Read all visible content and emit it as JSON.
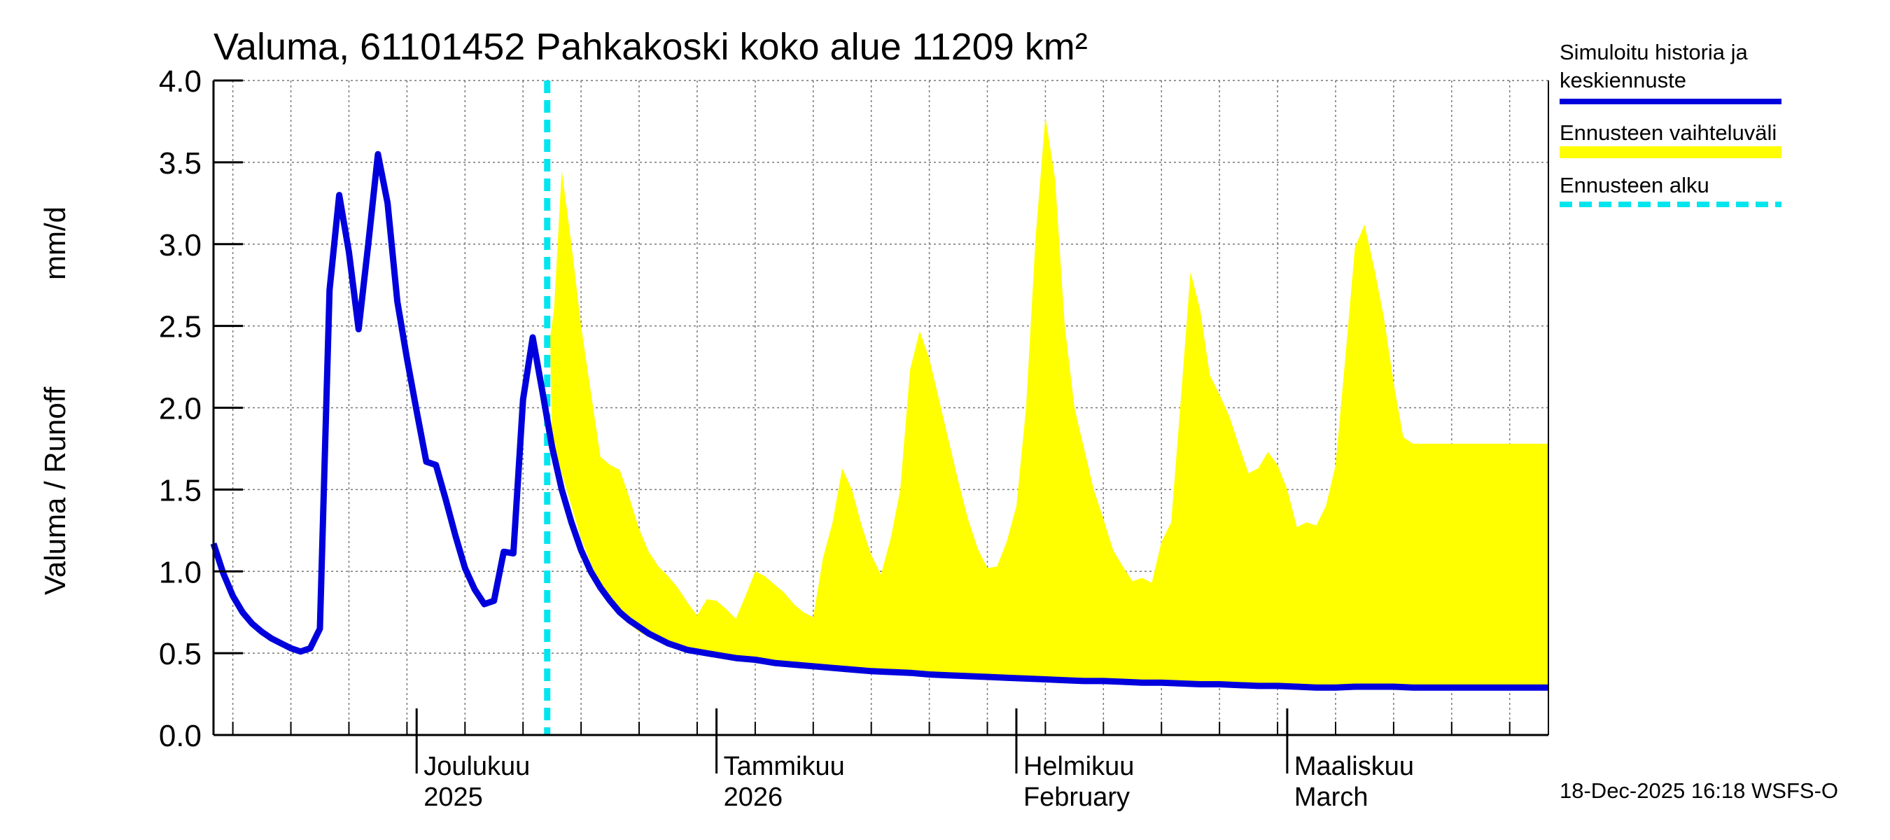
{
  "chart_data": {
    "type": "area",
    "title": "Valuma, 61101452 Pahkakoski koko alue 11209 km²",
    "ylabel_fi": "Valuma / Runoff",
    "ylabel_unit": "mm/d",
    "ylim": [
      0.0,
      4.0
    ],
    "yticks": [
      "0.0",
      "0.5",
      "1.0",
      "1.5",
      "2.0",
      "2.5",
      "3.0",
      "3.5",
      "4.0"
    ],
    "x_unit": "day index from 2025-11-10",
    "xlim": [
      0,
      138
    ],
    "forecast_start_day": 34.5,
    "month_ticks": [
      21,
      52,
      83,
      111
    ],
    "week_ticks": [
      2,
      8,
      14,
      20,
      26,
      32,
      38,
      44,
      50,
      56,
      62,
      68,
      74,
      80,
      86,
      92,
      98,
      104,
      110,
      116,
      122,
      128,
      134
    ],
    "month_labels": [
      {
        "day": 21,
        "line1": "Joulukuu",
        "line2": "2025"
      },
      {
        "day": 52,
        "line1": "Tammikuu",
        "line2": "2026"
      },
      {
        "day": 83,
        "line1": "Helmikuu",
        "line2": "February"
      },
      {
        "day": 111,
        "line1": "Maaliskuu",
        "line2": "March"
      }
    ],
    "series": [
      {
        "name": "Simuloitu historia ja keskiennuste",
        "color": "#0000dd",
        "points": [
          [
            0,
            1.17
          ],
          [
            1,
            0.99
          ],
          [
            2,
            0.85
          ],
          [
            3,
            0.75
          ],
          [
            4,
            0.68
          ],
          [
            5,
            0.63
          ],
          [
            6,
            0.59
          ],
          [
            7,
            0.56
          ],
          [
            8,
            0.53
          ],
          [
            9,
            0.51
          ],
          [
            10,
            0.53
          ],
          [
            11,
            0.65
          ],
          [
            12,
            2.72
          ],
          [
            13,
            3.3
          ],
          [
            14,
            2.95
          ],
          [
            15,
            2.48
          ],
          [
            16,
            3.0
          ],
          [
            17,
            3.55
          ],
          [
            18,
            3.25
          ],
          [
            19,
            2.65
          ],
          [
            20,
            2.3
          ],
          [
            21,
            1.98
          ],
          [
            22,
            1.67
          ],
          [
            23,
            1.65
          ],
          [
            24,
            1.44
          ],
          [
            25,
            1.22
          ],
          [
            26,
            1.02
          ],
          [
            27,
            0.89
          ],
          [
            28,
            0.8
          ],
          [
            29,
            0.82
          ],
          [
            30,
            1.12
          ],
          [
            31,
            1.11
          ],
          [
            32,
            2.05
          ],
          [
            33,
            2.43
          ],
          [
            34,
            2.1
          ],
          [
            35,
            1.76
          ],
          [
            36,
            1.5
          ],
          [
            37,
            1.3
          ],
          [
            38,
            1.13
          ],
          [
            39,
            1.0
          ],
          [
            40,
            0.9
          ],
          [
            41,
            0.82
          ],
          [
            42,
            0.75
          ],
          [
            43,
            0.7
          ],
          [
            44,
            0.66
          ],
          [
            45,
            0.62
          ],
          [
            46,
            0.59
          ],
          [
            47,
            0.56
          ],
          [
            48,
            0.54
          ],
          [
            49,
            0.52
          ],
          [
            50,
            0.51
          ],
          [
            52,
            0.49
          ],
          [
            54,
            0.47
          ],
          [
            56,
            0.46
          ],
          [
            58,
            0.44
          ],
          [
            60,
            0.43
          ],
          [
            62,
            0.42
          ],
          [
            64,
            0.41
          ],
          [
            66,
            0.4
          ],
          [
            68,
            0.39
          ],
          [
            70,
            0.385
          ],
          [
            72,
            0.38
          ],
          [
            74,
            0.37
          ],
          [
            76,
            0.365
          ],
          [
            78,
            0.36
          ],
          [
            80,
            0.355
          ],
          [
            82,
            0.35
          ],
          [
            84,
            0.345
          ],
          [
            86,
            0.34
          ],
          [
            88,
            0.335
          ],
          [
            90,
            0.33
          ],
          [
            92,
            0.33
          ],
          [
            94,
            0.325
          ],
          [
            96,
            0.32
          ],
          [
            98,
            0.32
          ],
          [
            100,
            0.315
          ],
          [
            102,
            0.31
          ],
          [
            104,
            0.31
          ],
          [
            106,
            0.305
          ],
          [
            108,
            0.3
          ],
          [
            110,
            0.3
          ],
          [
            112,
            0.295
          ],
          [
            114,
            0.29
          ],
          [
            116,
            0.29
          ],
          [
            118,
            0.295
          ],
          [
            120,
            0.295
          ],
          [
            122,
            0.295
          ],
          [
            124,
            0.29
          ],
          [
            126,
            0.29
          ],
          [
            128,
            0.29
          ],
          [
            130,
            0.29
          ],
          [
            132,
            0.29
          ],
          [
            134,
            0.29
          ],
          [
            136,
            0.29
          ],
          [
            138,
            0.29
          ]
        ]
      }
    ],
    "band": {
      "name": "Ennusteen vaihteluväli",
      "color": "#ffff00",
      "upper": [
        [
          34.8,
          2.43
        ],
        [
          35.2,
          2.6
        ],
        [
          36,
          3.45
        ],
        [
          37,
          3.0
        ],
        [
          38,
          2.5
        ],
        [
          39,
          2.1
        ],
        [
          40,
          1.7
        ],
        [
          41,
          1.65
        ],
        [
          42,
          1.62
        ],
        [
          43,
          1.45
        ],
        [
          44,
          1.26
        ],
        [
          45,
          1.12
        ],
        [
          46,
          1.03
        ],
        [
          47,
          0.97
        ],
        [
          48,
          0.9
        ],
        [
          49,
          0.81
        ],
        [
          50,
          0.73
        ],
        [
          51,
          0.83
        ],
        [
          52,
          0.82
        ],
        [
          53,
          0.77
        ],
        [
          54,
          0.71
        ],
        [
          55,
          0.85
        ],
        [
          56,
          1.0
        ],
        [
          57,
          0.97
        ],
        [
          58,
          0.92
        ],
        [
          59,
          0.87
        ],
        [
          60,
          0.8
        ],
        [
          61,
          0.75
        ],
        [
          62,
          0.72
        ],
        [
          63,
          1.08
        ],
        [
          64,
          1.3
        ],
        [
          65,
          1.63
        ],
        [
          66,
          1.5
        ],
        [
          67,
          1.28
        ],
        [
          68,
          1.1
        ],
        [
          69,
          0.98
        ],
        [
          70,
          1.2
        ],
        [
          71,
          1.5
        ],
        [
          72,
          2.23
        ],
        [
          73,
          2.47
        ],
        [
          74,
          2.3
        ],
        [
          75,
          2.05
        ],
        [
          76,
          1.8
        ],
        [
          77,
          1.55
        ],
        [
          78,
          1.32
        ],
        [
          79,
          1.14
        ],
        [
          80,
          1.02
        ],
        [
          81,
          1.03
        ],
        [
          82,
          1.18
        ],
        [
          83,
          1.4
        ],
        [
          84,
          2.0
        ],
        [
          85,
          3.05
        ],
        [
          86,
          3.78
        ],
        [
          87,
          3.4
        ],
        [
          88,
          2.5
        ],
        [
          89,
          2.0
        ],
        [
          90,
          1.75
        ],
        [
          91,
          1.5
        ],
        [
          92,
          1.32
        ],
        [
          93,
          1.13
        ],
        [
          94,
          1.03
        ],
        [
          95,
          0.94
        ],
        [
          96,
          0.96
        ],
        [
          97,
          0.93
        ],
        [
          98,
          1.18
        ],
        [
          99,
          1.3
        ],
        [
          100,
          2.05
        ],
        [
          101,
          2.83
        ],
        [
          102,
          2.6
        ],
        [
          103,
          2.2
        ],
        [
          104,
          2.08
        ],
        [
          105,
          1.95
        ],
        [
          106,
          1.77
        ],
        [
          107,
          1.6
        ],
        [
          108,
          1.63
        ],
        [
          109,
          1.73
        ],
        [
          110,
          1.65
        ],
        [
          111,
          1.5
        ],
        [
          112,
          1.27
        ],
        [
          113,
          1.3
        ],
        [
          114,
          1.28
        ],
        [
          115,
          1.4
        ],
        [
          116,
          1.65
        ],
        [
          117,
          2.3
        ],
        [
          118,
          2.98
        ],
        [
          119,
          3.12
        ],
        [
          120,
          2.85
        ],
        [
          121,
          2.55
        ],
        [
          122,
          2.15
        ],
        [
          123,
          1.82
        ],
        [
          124,
          1.78
        ],
        [
          138,
          1.78
        ]
      ],
      "lower": [
        [
          34.8,
          2.43
        ],
        [
          35,
          1.8
        ],
        [
          36,
          1.6
        ],
        [
          37,
          1.4
        ],
        [
          38,
          1.2
        ],
        [
          39,
          1.05
        ],
        [
          40,
          0.92
        ],
        [
          41,
          0.82
        ],
        [
          42,
          0.74
        ],
        [
          43,
          0.68
        ],
        [
          44,
          0.63
        ],
        [
          45,
          0.6
        ],
        [
          46,
          0.57
        ],
        [
          47,
          0.55
        ],
        [
          48,
          0.53
        ],
        [
          50,
          0.5
        ],
        [
          54,
          0.46
        ],
        [
          58,
          0.43
        ],
        [
          62,
          0.41
        ],
        [
          66,
          0.39
        ],
        [
          70,
          0.375
        ],
        [
          74,
          0.36
        ],
        [
          78,
          0.35
        ],
        [
          82,
          0.34
        ],
        [
          86,
          0.33
        ],
        [
          90,
          0.32
        ],
        [
          94,
          0.315
        ],
        [
          98,
          0.31
        ],
        [
          102,
          0.305
        ],
        [
          106,
          0.3
        ],
        [
          110,
          0.295
        ],
        [
          114,
          0.29
        ],
        [
          118,
          0.285
        ],
        [
          124,
          0.28
        ],
        [
          130,
          0.28
        ],
        [
          138,
          0.28
        ]
      ]
    },
    "legend": [
      {
        "label_line1": "Simuloitu historia ja",
        "label_line2": "keskiennuste",
        "color": "#0000dd",
        "style": "solid"
      },
      {
        "label_line1": "Ennusteen vaihteluväli",
        "label_line2": "",
        "color": "#ffff00",
        "style": "band"
      },
      {
        "label_line1": "Ennusteen alku",
        "label_line2": "",
        "color": "#00e5ee",
        "style": "dashed"
      }
    ],
    "forecast_line_color": "#00e5ee",
    "timestamp": "18-Dec-2025 16:18 WSFS-O"
  }
}
